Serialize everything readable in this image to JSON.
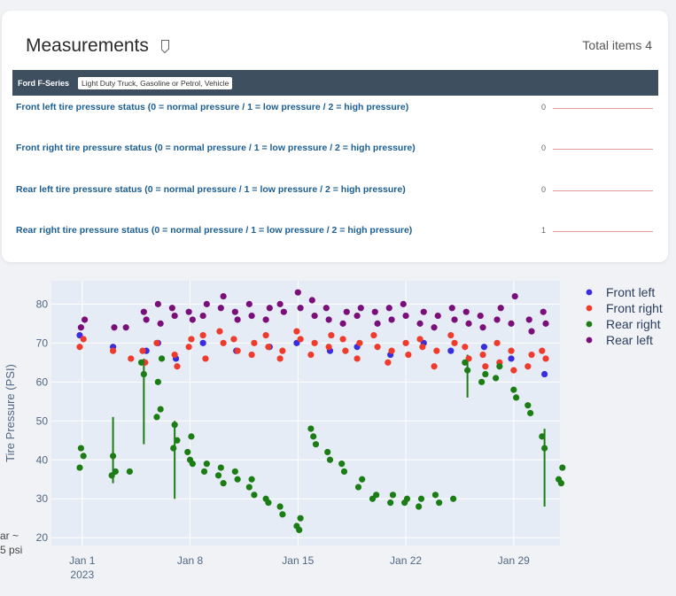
{
  "card": {
    "title": "Measurements",
    "total": "Total items 4",
    "vehicle": {
      "name": "Ford F-Series",
      "tag": "Light Duty Truck, Gasoline or Petrol, Vehicle"
    },
    "rows": [
      {
        "label": "Front left tire pressure status (0 = normal pressure / 1 = low pressure / 2 = high pressure)",
        "value": "0"
      },
      {
        "label": "Front right tire pressure status (0 = normal pressure / 1 = low pressure / 2 = high pressure)",
        "value": "0"
      },
      {
        "label": "Rear left tire pressure status (0 = normal pressure / 1 = low pressure / 2 = high pressure)",
        "value": "0"
      },
      {
        "label": "Rear right tire pressure status (0 = normal pressure / 1 = low pressure / 2 = high pressure)",
        "value": "1"
      }
    ],
    "spark_color": "#e39a9a",
    "header_color": "#3e4f5f"
  },
  "side_note": [
    "ar ~",
    "5 psi"
  ],
  "chart_data": {
    "type": "scatter",
    "ylabel": "Tire Pressure (PSI)",
    "xlabel": "",
    "ylim": [
      18,
      86
    ],
    "x_range": [
      "2022-12-30",
      "2023-02-01"
    ],
    "x_ticks": [
      {
        "date": "2023-01-01",
        "label": "Jan 1",
        "sublabel": "2023"
      },
      {
        "date": "2023-01-08",
        "label": "Jan 8"
      },
      {
        "date": "2023-01-15",
        "label": "Jan 15"
      },
      {
        "date": "2023-01-22",
        "label": "Jan 22"
      },
      {
        "date": "2023-01-29",
        "label": "Jan 29"
      }
    ],
    "y_ticks": [
      20,
      30,
      40,
      50,
      60,
      70,
      80
    ],
    "grid": true,
    "legend_placement": "top-right",
    "background": "#e5ecf6",
    "series": [
      {
        "name": "Front left",
        "color": "#3a2de0",
        "points": [
          [
            "2023-01-01",
            72
          ],
          [
            "2023-01-03",
            69
          ],
          [
            "2023-01-05",
            68
          ],
          [
            "2023-01-06",
            70
          ],
          [
            "2023-01-07",
            66
          ],
          [
            "2023-01-09",
            70
          ],
          [
            "2023-01-11",
            68
          ],
          [
            "2023-01-13",
            69
          ],
          [
            "2023-01-15",
            70
          ],
          [
            "2023-01-17",
            68
          ],
          [
            "2023-01-19",
            69
          ],
          [
            "2023-01-21",
            67
          ],
          [
            "2023-01-23",
            70
          ],
          [
            "2023-01-25",
            68
          ],
          [
            "2023-01-27",
            69
          ],
          [
            "2023-01-29",
            66
          ],
          [
            "2023-01-31",
            62
          ]
        ]
      },
      {
        "name": "Front right",
        "color": "#ef3b2c",
        "points": [
          [
            "2023-01-01",
            71
          ],
          [
            "2023-01-01",
            69
          ],
          [
            "2023-01-03",
            68
          ],
          [
            "2023-01-04",
            66
          ],
          [
            "2023-01-05",
            68
          ],
          [
            "2023-01-05",
            65
          ],
          [
            "2023-01-06",
            70
          ],
          [
            "2023-01-07",
            67
          ],
          [
            "2023-01-07",
            64
          ],
          [
            "2023-01-08",
            69
          ],
          [
            "2023-01-08",
            71
          ],
          [
            "2023-01-09",
            72
          ],
          [
            "2023-01-09",
            66
          ],
          [
            "2023-01-10",
            70
          ],
          [
            "2023-01-10",
            73
          ],
          [
            "2023-01-11",
            68
          ],
          [
            "2023-01-11",
            71
          ],
          [
            "2023-01-12",
            67
          ],
          [
            "2023-01-12",
            70
          ],
          [
            "2023-01-13",
            72
          ],
          [
            "2023-01-13",
            69
          ],
          [
            "2023-01-14",
            66
          ],
          [
            "2023-01-14",
            68
          ],
          [
            "2023-01-15",
            71
          ],
          [
            "2023-01-15",
            73
          ],
          [
            "2023-01-16",
            70
          ],
          [
            "2023-01-16",
            67
          ],
          [
            "2023-01-17",
            69
          ],
          [
            "2023-01-17",
            72
          ],
          [
            "2023-01-18",
            71
          ],
          [
            "2023-01-18",
            68
          ],
          [
            "2023-01-19",
            66
          ],
          [
            "2023-01-19",
            70
          ],
          [
            "2023-01-20",
            69
          ],
          [
            "2023-01-20",
            72
          ],
          [
            "2023-01-21",
            68
          ],
          [
            "2023-01-21",
            65
          ],
          [
            "2023-01-22",
            70
          ],
          [
            "2023-01-22",
            67
          ],
          [
            "2023-01-23",
            71
          ],
          [
            "2023-01-23",
            69
          ],
          [
            "2023-01-24",
            64
          ],
          [
            "2023-01-24",
            68
          ],
          [
            "2023-01-25",
            70
          ],
          [
            "2023-01-25",
            72
          ],
          [
            "2023-01-26",
            66
          ],
          [
            "2023-01-26",
            69
          ],
          [
            "2023-01-27",
            67
          ],
          [
            "2023-01-27",
            64
          ],
          [
            "2023-01-28",
            70
          ],
          [
            "2023-01-28",
            65
          ],
          [
            "2023-01-29",
            68
          ],
          [
            "2023-01-29",
            63
          ],
          [
            "2023-01-30",
            67
          ],
          [
            "2023-01-30",
            64
          ],
          [
            "2023-01-31",
            66
          ],
          [
            "2023-01-31",
            68
          ]
        ]
      },
      {
        "name": "Rear right",
        "color": "#1b7d14",
        "points": [
          [
            "2023-01-01",
            43
          ],
          [
            "2023-01-01",
            41
          ],
          [
            "2023-01-01",
            38
          ],
          [
            "2023-01-03",
            41
          ],
          [
            "2023-01-03",
            37
          ],
          [
            "2023-01-03",
            36
          ],
          [
            "2023-01-04",
            37
          ],
          [
            "2023-01-05",
            65
          ],
          [
            "2023-01-05",
            62
          ],
          [
            "2023-01-06",
            66
          ],
          [
            "2023-01-06",
            60
          ],
          [
            "2023-01-06",
            53
          ],
          [
            "2023-01-06",
            51
          ],
          [
            "2023-01-07",
            49
          ],
          [
            "2023-01-07",
            45
          ],
          [
            "2023-01-07",
            43
          ],
          [
            "2023-01-08",
            46
          ],
          [
            "2023-01-08",
            42
          ],
          [
            "2023-01-08",
            40
          ],
          [
            "2023-01-08",
            39
          ],
          [
            "2023-01-09",
            37
          ],
          [
            "2023-01-09",
            39
          ],
          [
            "2023-01-10",
            36
          ],
          [
            "2023-01-10",
            38
          ],
          [
            "2023-01-10",
            34
          ],
          [
            "2023-01-11",
            37
          ],
          [
            "2023-01-11",
            35
          ],
          [
            "2023-01-12",
            33
          ],
          [
            "2023-01-12",
            35
          ],
          [
            "2023-01-12",
            31
          ],
          [
            "2023-01-13",
            30
          ],
          [
            "2023-01-13",
            29
          ],
          [
            "2023-01-14",
            28
          ],
          [
            "2023-01-14",
            26
          ],
          [
            "2023-01-15",
            25
          ],
          [
            "2023-01-15",
            23
          ],
          [
            "2023-01-15",
            22
          ],
          [
            "2023-01-16",
            48
          ],
          [
            "2023-01-16",
            46
          ],
          [
            "2023-01-16",
            44
          ],
          [
            "2023-01-17",
            42
          ],
          [
            "2023-01-17",
            40
          ],
          [
            "2023-01-18",
            39
          ],
          [
            "2023-01-18",
            37
          ],
          [
            "2023-01-19",
            35
          ],
          [
            "2023-01-19",
            33
          ],
          [
            "2023-01-20",
            31
          ],
          [
            "2023-01-20",
            30
          ],
          [
            "2023-01-21",
            29
          ],
          [
            "2023-01-21",
            31
          ],
          [
            "2023-01-22",
            29
          ],
          [
            "2023-01-22",
            30
          ],
          [
            "2023-01-23",
            28
          ],
          [
            "2023-01-23",
            30
          ],
          [
            "2023-01-24",
            29
          ],
          [
            "2023-01-24",
            31
          ],
          [
            "2023-01-25",
            30
          ],
          [
            "2023-01-26",
            65
          ],
          [
            "2023-01-26",
            63
          ],
          [
            "2023-01-27",
            62
          ],
          [
            "2023-01-27",
            60
          ],
          [
            "2023-01-28",
            64
          ],
          [
            "2023-01-28",
            61
          ],
          [
            "2023-01-29",
            58
          ],
          [
            "2023-01-29",
            56
          ],
          [
            "2023-01-30",
            54
          ],
          [
            "2023-01-30",
            52
          ],
          [
            "2023-01-31",
            46
          ],
          [
            "2023-01-31",
            43
          ],
          [
            "2023-02-01",
            38
          ],
          [
            "2023-02-01",
            35
          ],
          [
            "2023-02-01",
            34
          ]
        ]
      },
      {
        "name": "Rear left",
        "color": "#7a0f7a",
        "points": [
          [
            "2023-01-01",
            76
          ],
          [
            "2023-01-01",
            74
          ],
          [
            "2023-01-03",
            74
          ],
          [
            "2023-01-04",
            74
          ],
          [
            "2023-01-05",
            78
          ],
          [
            "2023-01-05",
            76
          ],
          [
            "2023-01-06",
            80
          ],
          [
            "2023-01-06",
            75
          ],
          [
            "2023-01-07",
            79
          ],
          [
            "2023-01-07",
            77
          ],
          [
            "2023-01-08",
            76
          ],
          [
            "2023-01-08",
            78
          ],
          [
            "2023-01-09",
            80
          ],
          [
            "2023-01-09",
            77
          ],
          [
            "2023-01-10",
            79
          ],
          [
            "2023-01-10",
            82
          ],
          [
            "2023-01-11",
            78
          ],
          [
            "2023-01-11",
            76
          ],
          [
            "2023-01-12",
            80
          ],
          [
            "2023-01-12",
            77
          ],
          [
            "2023-01-13",
            79
          ],
          [
            "2023-01-13",
            76
          ],
          [
            "2023-01-14",
            78
          ],
          [
            "2023-01-14",
            80
          ],
          [
            "2023-01-15",
            83
          ],
          [
            "2023-01-15",
            79
          ],
          [
            "2023-01-16",
            81
          ],
          [
            "2023-01-16",
            77
          ],
          [
            "2023-01-17",
            79
          ],
          [
            "2023-01-17",
            76
          ],
          [
            "2023-01-18",
            78
          ],
          [
            "2023-01-18",
            75
          ],
          [
            "2023-01-19",
            79
          ],
          [
            "2023-01-19",
            77
          ],
          [
            "2023-01-20",
            78
          ],
          [
            "2023-01-20",
            75
          ],
          [
            "2023-01-21",
            79
          ],
          [
            "2023-01-21",
            76
          ],
          [
            "2023-01-22",
            80
          ],
          [
            "2023-01-22",
            77
          ],
          [
            "2023-01-23",
            78
          ],
          [
            "2023-01-23",
            75
          ],
          [
            "2023-01-24",
            77
          ],
          [
            "2023-01-24",
            74
          ],
          [
            "2023-01-25",
            79
          ],
          [
            "2023-01-25",
            76
          ],
          [
            "2023-01-26",
            78
          ],
          [
            "2023-01-26",
            75
          ],
          [
            "2023-01-27",
            77
          ],
          [
            "2023-01-27",
            74
          ],
          [
            "2023-01-28",
            79
          ],
          [
            "2023-01-28",
            76
          ],
          [
            "2023-01-29",
            82
          ],
          [
            "2023-01-29",
            75
          ],
          [
            "2023-01-30",
            76
          ],
          [
            "2023-01-30",
            73
          ],
          [
            "2023-01-31",
            78
          ],
          [
            "2023-01-31",
            75
          ]
        ]
      }
    ],
    "error_bars": [
      {
        "date": "2023-01-03",
        "low": 34,
        "high": 51,
        "color": "#1b7d14"
      },
      {
        "date": "2023-01-05",
        "low": 44,
        "high": 66,
        "color": "#1b7d14"
      },
      {
        "date": "2023-01-07",
        "low": 30,
        "high": 50,
        "color": "#1b7d14"
      },
      {
        "date": "2023-01-26",
        "low": 56,
        "high": 67,
        "color": "#1b7d14"
      },
      {
        "date": "2023-01-31",
        "low": 28,
        "high": 48,
        "color": "#1b7d14"
      }
    ]
  }
}
